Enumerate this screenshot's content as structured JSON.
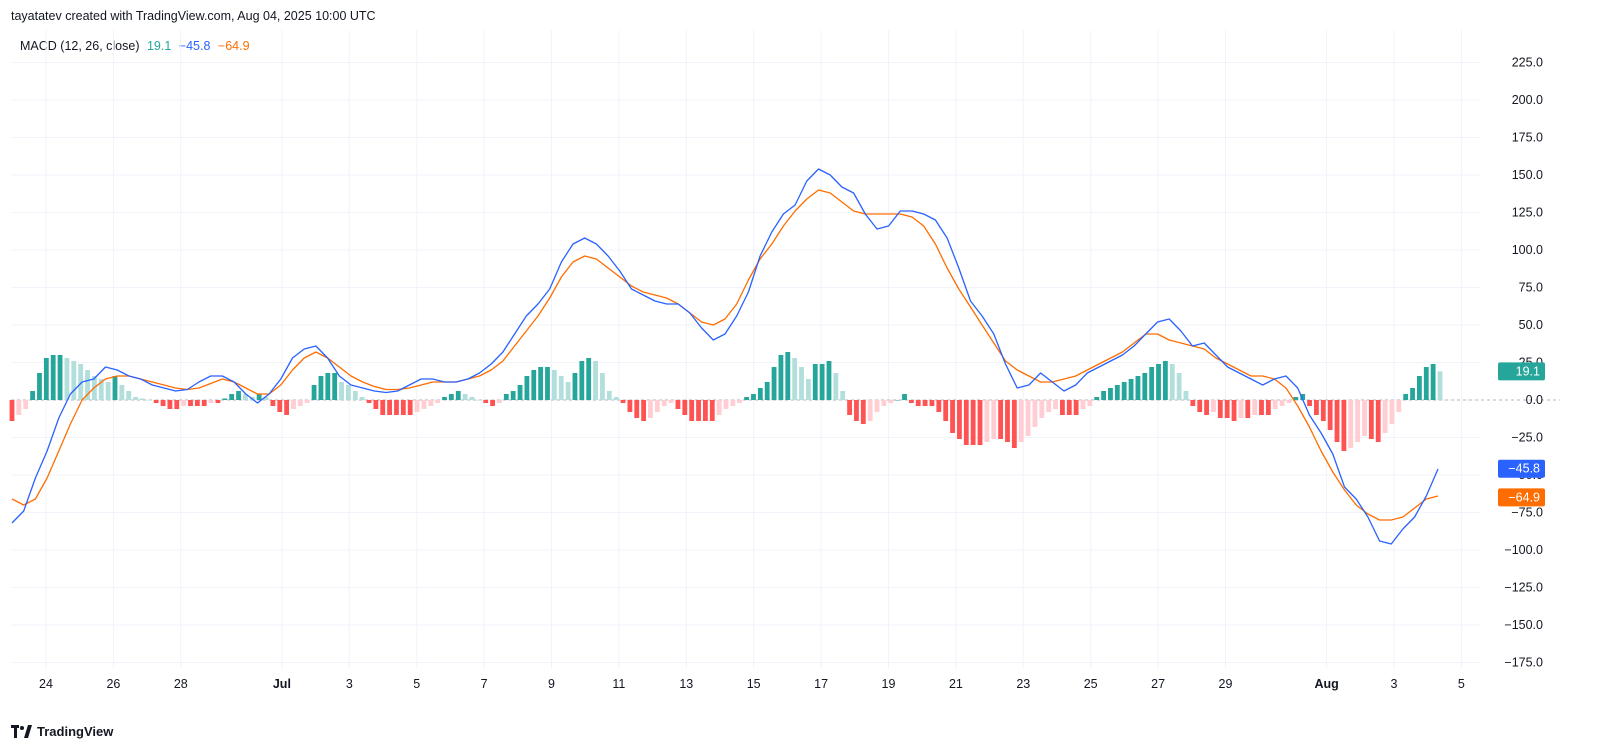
{
  "header": {
    "text": "tayatatev created with TradingView.com, Aug 04, 2025 10:00 UTC"
  },
  "footer": {
    "brand": "TradingView",
    "logo_icon": "tradingview-logo-icon"
  },
  "legend": {
    "indicator": "MACD (12, 26, close)",
    "histogram_value": "19.1",
    "macd_value": "−45.8",
    "signal_value": "−64.9"
  },
  "colors": {
    "macd_line": "#2962ff",
    "signal_line": "#ff6d00",
    "hist_up_strong": "#26a69a",
    "hist_up_weak": "#b2dfdb",
    "hist_down_strong": "#ff5252",
    "hist_down_weak": "#ffcdd2",
    "grid": "#f0f3fa",
    "axis_text": "#131722"
  },
  "chart_data": {
    "type": "line",
    "title": "",
    "xlabel": "",
    "ylabel": "",
    "ylim": [
      -180,
      240
    ],
    "y_ticks": [
      "225.0",
      "200.0",
      "175.0",
      "150.0",
      "125.0",
      "100.0",
      "75.0",
      "50.0",
      "25.0",
      "0.0",
      "−25.0",
      "−50.0",
      "−75.0",
      "−100.0",
      "−125.0",
      "−150.0",
      "−175.0"
    ],
    "y_tick_values": [
      225,
      200,
      175,
      150,
      125,
      100,
      75,
      50,
      25,
      0,
      -25,
      -50,
      -75,
      -100,
      -125,
      -150,
      -175
    ],
    "x_tick_labels": [
      "24",
      "26",
      "28",
      "Jul",
      "3",
      "5",
      "7",
      "9",
      "11",
      "13",
      "15",
      "17",
      "19",
      "21",
      "23",
      "25",
      "27",
      "29",
      "Aug",
      "3",
      "5"
    ],
    "x_tick_days": [
      0,
      2,
      4,
      7,
      9,
      11,
      13,
      15,
      17,
      19,
      21,
      23,
      25,
      27,
      29,
      31,
      33,
      35,
      38,
      40,
      42
    ],
    "x_tick_bold": [
      "Jul",
      "Aug"
    ],
    "x_range_days": [
      -1.05,
      43.2
    ],
    "price_labels": [
      {
        "text": "19.1",
        "value": 19.1,
        "color": "#26a69a"
      },
      {
        "text": "−45.8",
        "value": -45.8,
        "color": "#2962ff"
      },
      {
        "text": "−64.9",
        "value": -64.9,
        "color": "#ff6d00"
      }
    ],
    "series": [
      {
        "name": "MACD",
        "color": "#2962ff",
        "points": [
          [
            -1,
            -82
          ],
          [
            -0.5,
            -74
          ],
          [
            0,
            -52
          ],
          [
            0.5,
            -34
          ],
          [
            1,
            -12
          ],
          [
            1.5,
            4
          ],
          [
            2,
            12
          ],
          [
            2.5,
            14
          ],
          [
            3,
            22
          ],
          [
            3.5,
            20
          ],
          [
            4,
            16
          ],
          [
            4.5,
            14
          ],
          [
            5,
            10
          ],
          [
            5.5,
            8
          ],
          [
            6,
            6
          ],
          [
            6.5,
            7
          ],
          [
            7,
            12
          ],
          [
            7.5,
            16
          ],
          [
            8,
            16
          ],
          [
            8.5,
            12
          ],
          [
            9,
            4
          ],
          [
            9.5,
            -2
          ],
          [
            10,
            4
          ],
          [
            10.5,
            14
          ],
          [
            11,
            28
          ],
          [
            11.5,
            34
          ],
          [
            12,
            36
          ],
          [
            12.5,
            28
          ],
          [
            13,
            16
          ],
          [
            13.5,
            10
          ],
          [
            14,
            8
          ],
          [
            14.5,
            6
          ],
          [
            15,
            5
          ],
          [
            15.5,
            6
          ],
          [
            16,
            10
          ],
          [
            16.5,
            14
          ],
          [
            17,
            14
          ],
          [
            17.5,
            12
          ],
          [
            18,
            12
          ],
          [
            18.5,
            14
          ],
          [
            19,
            18
          ],
          [
            19.5,
            24
          ],
          [
            20,
            32
          ],
          [
            20.5,
            44
          ],
          [
            21,
            56
          ],
          [
            21.5,
            64
          ],
          [
            22,
            74
          ],
          [
            22.5,
            92
          ],
          [
            23,
            104
          ],
          [
            23.5,
            108
          ],
          [
            24,
            104
          ],
          [
            24.5,
            96
          ],
          [
            25,
            86
          ],
          [
            25.5,
            74
          ],
          [
            26,
            70
          ],
          [
            26.5,
            66
          ],
          [
            27,
            64
          ],
          [
            27.5,
            64
          ],
          [
            28,
            58
          ],
          [
            28.5,
            48
          ],
          [
            29,
            40
          ],
          [
            29.5,
            44
          ],
          [
            30,
            56
          ],
          [
            30.5,
            72
          ],
          [
            31,
            96
          ],
          [
            31.5,
            112
          ],
          [
            32,
            124
          ],
          [
            32.5,
            130
          ],
          [
            33,
            146
          ],
          [
            33.5,
            154
          ],
          [
            34,
            150
          ],
          [
            34.5,
            142
          ],
          [
            35,
            138
          ],
          [
            35.5,
            124
          ],
          [
            36,
            114
          ],
          [
            36.5,
            116
          ],
          [
            37,
            126
          ],
          [
            37.5,
            126
          ],
          [
            38,
            124
          ],
          [
            38.5,
            120
          ],
          [
            39,
            108
          ],
          [
            39.5,
            88
          ],
          [
            40,
            66
          ],
          [
            40.5,
            56
          ],
          [
            41,
            44
          ],
          [
            41.5,
            24
          ],
          [
            42,
            8
          ],
          [
            42.5,
            10
          ],
          [
            43,
            18
          ],
          [
            43.5,
            12
          ],
          [
            44,
            6
          ],
          [
            44.5,
            10
          ],
          [
            45,
            18
          ],
          [
            45.5,
            22
          ],
          [
            46,
            26
          ],
          [
            46.5,
            30
          ],
          [
            47,
            36
          ],
          [
            47.5,
            44
          ],
          [
            48,
            52
          ],
          [
            48.5,
            54
          ],
          [
            49,
            46
          ],
          [
            49.5,
            36
          ],
          [
            50,
            38
          ],
          [
            50.5,
            30
          ],
          [
            51,
            22
          ],
          [
            51.5,
            18
          ],
          [
            52,
            14
          ],
          [
            52.5,
            10
          ],
          [
            53,
            14
          ],
          [
            53.5,
            16
          ],
          [
            54,
            8
          ],
          [
            54.5,
            -10
          ],
          [
            55,
            -22
          ],
          [
            55.5,
            -36
          ],
          [
            56,
            -58
          ],
          [
            56.5,
            -66
          ],
          [
            57,
            -78
          ],
          [
            57.5,
            -94
          ],
          [
            58,
            -96
          ],
          [
            58.5,
            -86
          ],
          [
            59,
            -78
          ],
          [
            59.5,
            -64
          ],
          [
            60,
            -46
          ]
        ]
      },
      {
        "name": "Signal",
        "color": "#ff6d00",
        "points": [
          [
            -1,
            -66
          ],
          [
            -0.5,
            -70
          ],
          [
            0,
            -66
          ],
          [
            0.5,
            -52
          ],
          [
            1,
            -34
          ],
          [
            1.5,
            -16
          ],
          [
            2,
            0
          ],
          [
            2.5,
            8
          ],
          [
            3,
            14
          ],
          [
            3.5,
            16
          ],
          [
            4,
            16
          ],
          [
            4.5,
            14
          ],
          [
            5,
            12
          ],
          [
            5.5,
            10
          ],
          [
            6,
            8
          ],
          [
            6.5,
            7
          ],
          [
            7,
            8
          ],
          [
            7.5,
            11
          ],
          [
            8,
            14
          ],
          [
            8.5,
            12
          ],
          [
            9,
            8
          ],
          [
            9.5,
            4
          ],
          [
            10,
            4
          ],
          [
            10.5,
            10
          ],
          [
            11,
            20
          ],
          [
            11.5,
            28
          ],
          [
            12,
            32
          ],
          [
            12.5,
            28
          ],
          [
            13,
            22
          ],
          [
            13.5,
            16
          ],
          [
            14,
            12
          ],
          [
            14.5,
            9
          ],
          [
            15,
            7
          ],
          [
            15.5,
            7
          ],
          [
            16,
            8
          ],
          [
            16.5,
            10
          ],
          [
            17,
            12
          ],
          [
            17.5,
            12
          ],
          [
            18,
            12
          ],
          [
            18.5,
            14
          ],
          [
            19,
            16
          ],
          [
            19.5,
            20
          ],
          [
            20,
            26
          ],
          [
            20.5,
            36
          ],
          [
            21,
            46
          ],
          [
            21.5,
            56
          ],
          [
            22,
            68
          ],
          [
            22.5,
            82
          ],
          [
            23,
            92
          ],
          [
            23.5,
            96
          ],
          [
            24,
            94
          ],
          [
            24.5,
            88
          ],
          [
            25,
            82
          ],
          [
            25.5,
            76
          ],
          [
            26,
            72
          ],
          [
            26.5,
            70
          ],
          [
            27,
            68
          ],
          [
            27.5,
            64
          ],
          [
            28,
            58
          ],
          [
            28.5,
            52
          ],
          [
            29,
            50
          ],
          [
            29.5,
            54
          ],
          [
            30,
            64
          ],
          [
            30.5,
            80
          ],
          [
            31,
            94
          ],
          [
            31.5,
            104
          ],
          [
            32,
            116
          ],
          [
            32.5,
            126
          ],
          [
            33,
            134
          ],
          [
            33.5,
            140
          ],
          [
            34,
            138
          ],
          [
            34.5,
            132
          ],
          [
            35,
            126
          ],
          [
            35.5,
            124
          ],
          [
            36,
            124
          ],
          [
            36.5,
            124
          ],
          [
            37,
            124
          ],
          [
            37.5,
            122
          ],
          [
            38,
            116
          ],
          [
            38.5,
            104
          ],
          [
            39,
            88
          ],
          [
            39.5,
            74
          ],
          [
            40,
            62
          ],
          [
            40.5,
            50
          ],
          [
            41,
            38
          ],
          [
            41.5,
            26
          ],
          [
            42,
            20
          ],
          [
            42.5,
            16
          ],
          [
            43,
            12
          ],
          [
            43.5,
            12
          ],
          [
            44,
            14
          ],
          [
            44.5,
            16
          ],
          [
            45,
            20
          ],
          [
            45.5,
            24
          ],
          [
            46,
            28
          ],
          [
            46.5,
            32
          ],
          [
            47,
            38
          ],
          [
            47.5,
            44
          ],
          [
            48,
            44
          ],
          [
            48.5,
            40
          ],
          [
            49,
            38
          ],
          [
            49.5,
            36
          ],
          [
            50,
            34
          ],
          [
            50.5,
            28
          ],
          [
            51,
            24
          ],
          [
            51.5,
            20
          ],
          [
            52,
            16
          ],
          [
            52.5,
            16
          ],
          [
            53,
            14
          ],
          [
            53.5,
            8
          ],
          [
            54,
            -4
          ],
          [
            54.5,
            -18
          ],
          [
            55,
            -34
          ],
          [
            55.5,
            -48
          ],
          [
            56,
            -60
          ],
          [
            56.5,
            -70
          ],
          [
            57,
            -76
          ],
          [
            57.5,
            -80
          ],
          [
            58,
            -80
          ],
          [
            58.5,
            -78
          ],
          [
            59,
            -72
          ],
          [
            59.5,
            -66
          ],
          [
            60,
            -64
          ]
        ]
      },
      {
        "name": "Histogram",
        "type": "bar",
        "values": [
          -14,
          -10,
          -6,
          6,
          18,
          28,
          30,
          30,
          28,
          26,
          24,
          20,
          16,
          14,
          12,
          16,
          10,
          6,
          2,
          1,
          0,
          -2,
          -4,
          -6,
          -6,
          -4,
          -4,
          -4,
          -4,
          -2,
          -2,
          1,
          4,
          6,
          4,
          2,
          4,
          2,
          -4,
          -8,
          -10,
          -6,
          -4,
          -2,
          10,
          16,
          18,
          18,
          12,
          10,
          6,
          2,
          -2,
          -6,
          -10,
          -10,
          -10,
          -10,
          -10,
          -8,
          -6,
          -4,
          -2,
          2,
          4,
          6,
          4,
          2,
          0,
          -2,
          -4,
          -2,
          4,
          6,
          10,
          16,
          20,
          22,
          22,
          20,
          16,
          12,
          18,
          26,
          28,
          26,
          18,
          6,
          2,
          -2,
          -8,
          -12,
          -14,
          -12,
          -8,
          -4,
          -2,
          -6,
          -10,
          -14,
          -14,
          -14,
          -14,
          -10,
          -6,
          -4,
          -2,
          2,
          4,
          8,
          12,
          22,
          30,
          32,
          28,
          22,
          14,
          24,
          24,
          26,
          18,
          6,
          -10,
          -14,
          -16,
          -14,
          -8,
          -4,
          -2,
          0,
          4,
          -2,
          -4,
          -4,
          -4,
          -8,
          -14,
          -22,
          -26,
          -30,
          -30,
          -30,
          -28,
          -26,
          -26,
          -28,
          -32,
          -28,
          -24,
          -18,
          -12,
          -8,
          -6,
          -10,
          -10,
          -10,
          -6,
          -4,
          2,
          6,
          8,
          10,
          12,
          14,
          16,
          18,
          22,
          24,
          26,
          24,
          18,
          6,
          -4,
          -8,
          -10,
          -8,
          -12,
          -12,
          -14,
          -12,
          -12,
          -10,
          -10,
          -10,
          -6,
          -4,
          -2,
          2,
          4,
          -4,
          -10,
          -14,
          -20,
          -28,
          -34,
          -32,
          -28,
          -24,
          -26,
          -28,
          -22,
          -16,
          -8,
          4,
          8,
          16,
          22,
          24,
          19.1
        ],
        "value_scale_note": ""
      }
    ]
  }
}
